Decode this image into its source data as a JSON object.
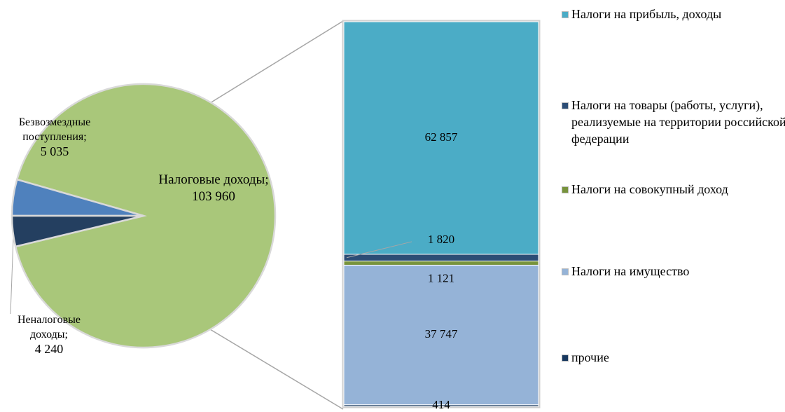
{
  "chart_data": {
    "type": "bar-of-pie",
    "label_separator": ";",
    "pie": {
      "categories": [
        "Налоговые доходы",
        "Безвозмездные поступления",
        "Неналоговые доходы"
      ],
      "values": [
        103960,
        5035,
        4240
      ],
      "value_labels": [
        "103 960",
        "5 035",
        "4 240"
      ],
      "colors": [
        "#a9c77a",
        "#4f81bd",
        "#243f60"
      ]
    },
    "bar": {
      "categories": [
        "Налоги на прибыль, доходы",
        "Налоги на товары (работы, услуги), реализуемые на территории российской федерации",
        "Налоги на совокупный доход",
        "Налоги на имущество",
        "прочие"
      ],
      "values": [
        62857,
        1820,
        1121,
        37747,
        414
      ],
      "value_labels": [
        "62 857",
        "1 820",
        "1 121",
        "37 747",
        "414"
      ],
      "colors": [
        "#4bacc6",
        "#2c4d75",
        "#77933c",
        "#95b3d7",
        "#17375e"
      ]
    }
  }
}
